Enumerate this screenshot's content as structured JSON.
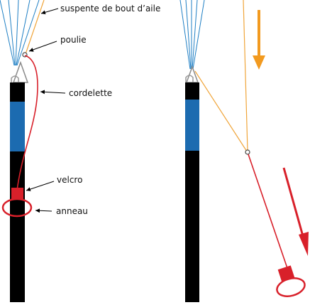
{
  "labels": {
    "wingtip_line": "suspente de bout d’aile",
    "pulley": "poulie",
    "cord": "cordelette",
    "velcro": "velcro",
    "ring": "anneau"
  },
  "colors": {
    "riser": "#000000",
    "riser_band": "#1c6bb0",
    "suspension_lines": "#1f7fc4",
    "wingtip_line": "#f0a53a",
    "cord": "#d8202a",
    "arrow_orange": "#f29a1f",
    "arrow_red": "#d8202a",
    "connector": "#a9a9a9"
  },
  "panels": [
    {
      "name": "before",
      "state": "cord attached with velcro"
    },
    {
      "name": "after",
      "state": "cord pulled, wingtip line drawn down"
    }
  ]
}
